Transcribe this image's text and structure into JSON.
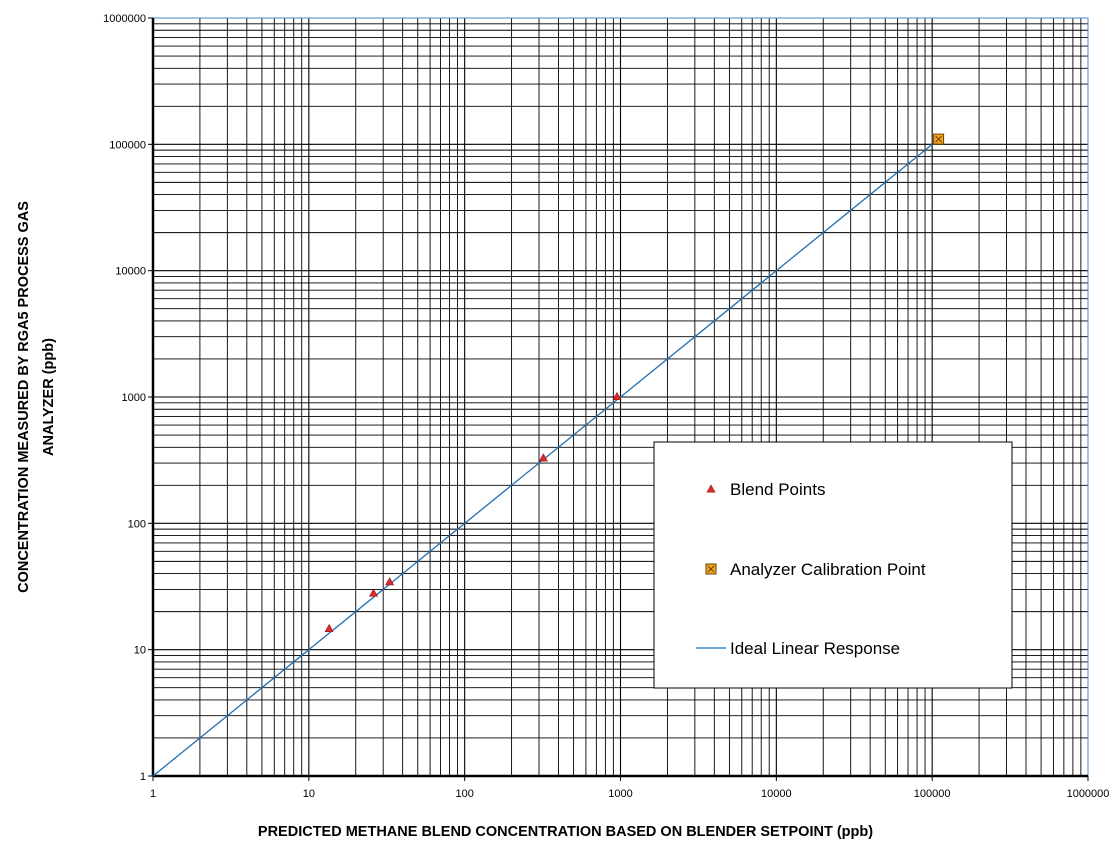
{
  "chart_data": {
    "type": "scatter",
    "title": "",
    "xlabel": "PREDICTED METHANE BLEND CONCENTRATION BASED ON BLENDER SETPOINT (ppb)",
    "ylabel_lines": [
      "CONCENTRATION MEASURED BY RGA5 PROCESS GAS",
      "ANALYZER (ppb)"
    ],
    "x_scale": "log",
    "y_scale": "log",
    "xlim": [
      1,
      1000000
    ],
    "ylim": [
      1,
      1000000
    ],
    "grid": true,
    "legend_position": "bottom-right",
    "x_tick_labels": [
      "1",
      "10",
      "100",
      "1000",
      "10000",
      "100000",
      "1000000"
    ],
    "y_tick_labels": [
      "1",
      "10",
      "100",
      "1000",
      "10000",
      "100000",
      "1000000"
    ],
    "series": [
      {
        "name": "Blend Points",
        "marker": "triangle",
        "color": "#e0282b",
        "points": [
          {
            "x": 13.5,
            "y": 14.7
          },
          {
            "x": 26,
            "y": 28
          },
          {
            "x": 33,
            "y": 34.5
          },
          {
            "x": 320,
            "y": 330
          },
          {
            "x": 950,
            "y": 1010
          }
        ]
      },
      {
        "name": "Analyzer Calibration Point",
        "marker": "square-x",
        "color": "#f5a623",
        "points": [
          {
            "x": 110000,
            "y": 110000
          }
        ]
      },
      {
        "name": "Ideal Linear Response",
        "marker": "line",
        "color": "#1f6fb2",
        "points": [
          {
            "x": 1,
            "y": 1
          },
          {
            "x": 110000,
            "y": 110000
          }
        ]
      }
    ]
  }
}
